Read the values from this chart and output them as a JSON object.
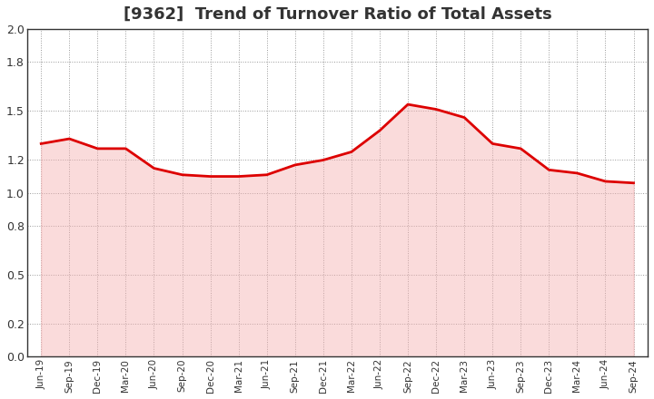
{
  "title": "[9362]  Trend of Turnover Ratio of Total Assets",
  "title_fontsize": 13,
  "title_fontweight": "bold",
  "title_color": "#333333",
  "line_color": "#dd0000",
  "line_width": 2.0,
  "fill_color": "#f5b0b0",
  "fill_alpha": 0.45,
  "background_color": "#ffffff",
  "plot_bg_color": "#ffffff",
  "ylim": [
    0.0,
    2.0
  ],
  "yticks": [
    0.0,
    0.2,
    0.5,
    0.8,
    1.0,
    1.2,
    1.5,
    1.8,
    2.0
  ],
  "xlabel_fontsize": 7.5,
  "ylabel_fontsize": 9,
  "grid_color": "#999999",
  "grid_linestyle": ":",
  "grid_linewidth": 0.7,
  "x_labels": [
    "Jun-19",
    "Sep-19",
    "Dec-19",
    "Mar-20",
    "Jun-20",
    "Sep-20",
    "Dec-20",
    "Mar-21",
    "Jun-21",
    "Sep-21",
    "Dec-21",
    "Mar-22",
    "Jun-22",
    "Sep-22",
    "Dec-22",
    "Mar-23",
    "Jun-23",
    "Sep-23",
    "Dec-23",
    "Mar-24",
    "Jun-24",
    "Sep-24"
  ],
  "values": [
    1.3,
    1.33,
    1.27,
    1.27,
    1.15,
    1.11,
    1.1,
    1.1,
    1.11,
    1.17,
    1.2,
    1.25,
    1.38,
    1.54,
    1.51,
    1.46,
    1.3,
    1.27,
    1.14,
    1.12,
    1.07,
    1.06
  ]
}
